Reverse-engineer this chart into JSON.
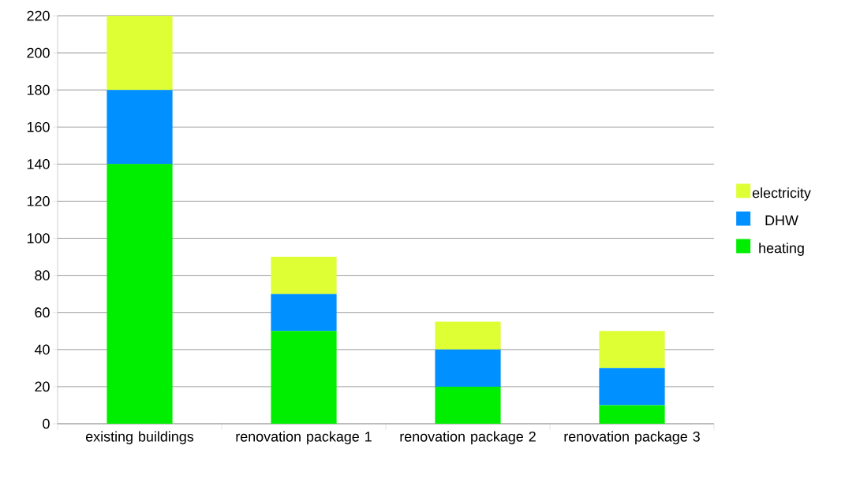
{
  "chart_data": {
    "type": "bar",
    "stacked": true,
    "categories": [
      "existing buildings",
      "renovation package 1",
      "renovation package 2",
      "renovation package 3"
    ],
    "series": [
      {
        "name": "heating",
        "color": "#00ee00",
        "values": [
          140,
          50,
          20,
          10
        ]
      },
      {
        "name": "DHW",
        "color": "#0090ff",
        "values": [
          40,
          20,
          20,
          20
        ]
      },
      {
        "name": "electricity",
        "color": "#ddff33",
        "values": [
          40,
          20,
          15,
          20
        ]
      }
    ],
    "ylim": [
      0,
      220
    ],
    "yticks": [
      0,
      20,
      40,
      60,
      80,
      100,
      120,
      140,
      160,
      180,
      200,
      220
    ],
    "grid": "y",
    "legend": "right"
  }
}
